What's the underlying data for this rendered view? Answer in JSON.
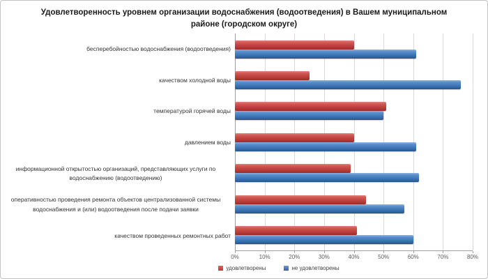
{
  "title": "Удовлетворенность уровнем организации водоснабжения (водоотведения) в Вашем муниципальном районе (городском округе)",
  "chart_data": {
    "type": "bar",
    "orientation": "horizontal",
    "title": "Удовлетворенность уровнем организации водоснабжения (водоотведения) в Вашем муниципальном районе (городском округе)",
    "categories": [
      "бесперебойностью водоснабжения (водоотведения)",
      "качеством холодной воды",
      "температурой горячей воды",
      "давлением воды",
      "информационной открытостью организаций, представляющих услуги по водоснабжению (водоотведению)",
      "оперативностью проведения ремонта объектов централизованной системы водоснабжения и (или) водоотведения после подачи заявки",
      "качеством проведенных ремонтных работ"
    ],
    "series": [
      {
        "name": "удовлетворены",
        "color": "#c0504d",
        "values": [
          40,
          25,
          51,
          40,
          39,
          44,
          41
        ]
      },
      {
        "name": "не удовлетворены",
        "color": "#4f81bd",
        "values": [
          61,
          76,
          50,
          61,
          62,
          57,
          60
        ]
      }
    ],
    "xlim": [
      0,
      80
    ],
    "x_ticks": [
      "0%",
      "10%",
      "20%",
      "30%",
      "40%",
      "50%",
      "60%",
      "70%",
      "80%"
    ],
    "grid": true,
    "legend_position": "bottom"
  },
  "colors": {
    "satisfied_red": "#c0504d",
    "not_satisfied_blue": "#4f81bd",
    "gridline": "#d9d9d9",
    "axis_line": "#9e9e9e",
    "tick_text": "#595959",
    "frame_border": "#c3c3c3"
  }
}
